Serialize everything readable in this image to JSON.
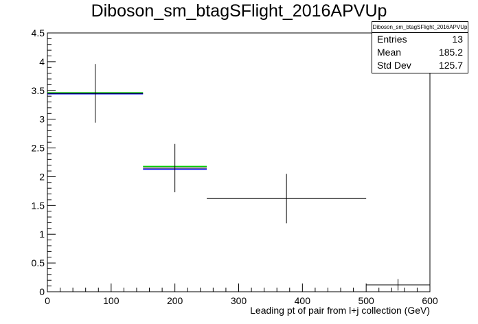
{
  "title": "Diboson_sm_btagSFlight_2016APVUp",
  "stats": {
    "name": "Diboson_sm_btagSFlight_2016APVUp",
    "rows": [
      {
        "label": "Entries",
        "value": "13"
      },
      {
        "label": "Mean",
        "value": "185.2"
      },
      {
        "label": "Std Dev",
        "value": "125.7"
      }
    ]
  },
  "chart_data": {
    "type": "histogram",
    "title": "Diboson_sm_btagSFlight_2016APVUp",
    "xlabel": "Leading pt of pair from l+j collection (GeV)",
    "ylabel": "",
    "xlim": [
      0,
      600
    ],
    "ylim": [
      0,
      4.5
    ],
    "x_ticks": [
      0,
      100,
      200,
      300,
      400,
      500,
      600
    ],
    "y_ticks": [
      0,
      0.5,
      1,
      1.5,
      2,
      2.5,
      3,
      3.5,
      4,
      4.5
    ],
    "bins": [
      {
        "low": 0,
        "high": 150,
        "value": 3.45,
        "err": 0.51
      },
      {
        "low": 150,
        "high": 250,
        "value": 2.15,
        "err": 0.42
      },
      {
        "low": 250,
        "high": 500,
        "value": 1.62,
        "err": 0.43
      },
      {
        "low": 500,
        "high": 600,
        "value": 0.12,
        "err": 0.1
      }
    ],
    "overlays": [
      {
        "color": "#00cc00",
        "values": [
          3.46,
          2.18
        ]
      },
      {
        "color": "#0000ff",
        "values": [
          3.44,
          2.13
        ]
      }
    ],
    "colors": {
      "data": "#000000"
    }
  }
}
